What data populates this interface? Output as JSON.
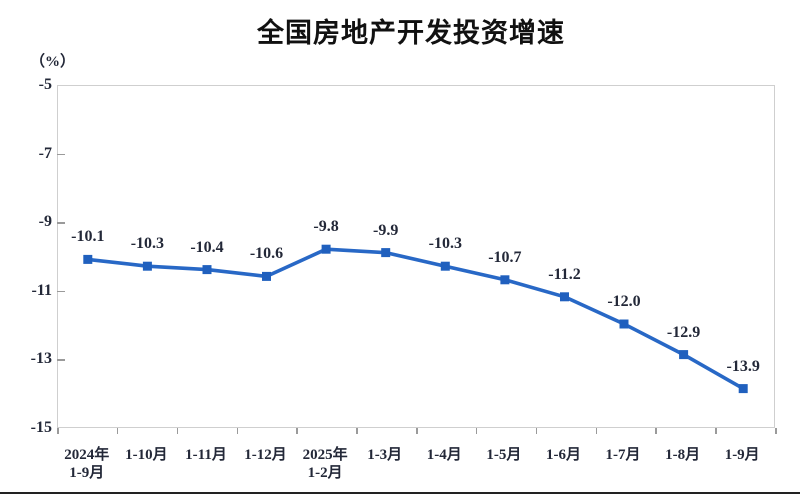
{
  "header": {
    "title": "全国房地产开发投资增速"
  },
  "colors": {
    "line": "#2868C6",
    "marker": "#2060BE",
    "ink": "#232838",
    "title_ink": "#111111",
    "plot_border": "#cfcfcf",
    "tick": "#9a9a9a",
    "divider": "#222222"
  },
  "chart_data": {
    "type": "line",
    "title": "全国房地产开发投资增速",
    "unit_label": "（%）",
    "categories": [
      "2024年\n1-9月",
      "1-10月",
      "1-11月",
      "1-12月",
      "2025年\n1-2月",
      "1-3月",
      "1-4月",
      "1-5月",
      "1-6月",
      "1-7月",
      "1-8月",
      "1-9月"
    ],
    "values": [
      -10.1,
      -10.3,
      -10.4,
      -10.6,
      -9.8,
      -9.9,
      -10.3,
      -10.7,
      -11.2,
      -12.0,
      -12.9,
      -13.9
    ],
    "data_labels": [
      "-10.1",
      "-10.3",
      "-10.4",
      "-10.6",
      "-9.8",
      "-9.9",
      "-10.3",
      "-10.7",
      "-11.2",
      "-12.0",
      "-12.9",
      "-13.9"
    ],
    "y_ticks": [
      "-5",
      "-7",
      "-9",
      "-11",
      "-13",
      "-15"
    ],
    "ylim": [
      -15,
      -5
    ],
    "grid": false,
    "legend": false,
    "marker": "square",
    "xlabel": "",
    "ylabel": "（%）"
  }
}
